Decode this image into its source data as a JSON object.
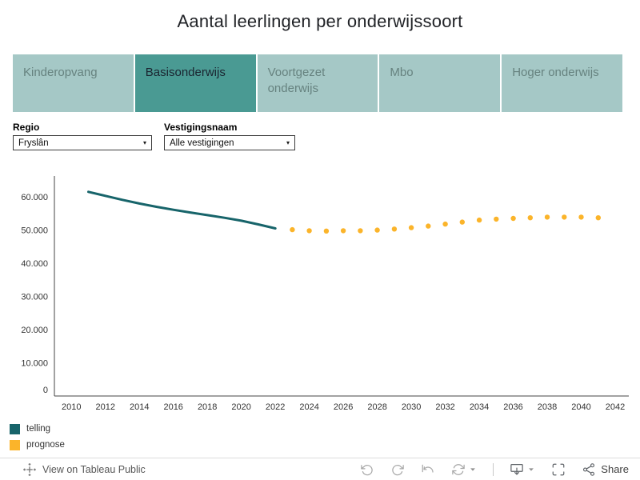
{
  "title": "Aantal leerlingen per onderwijssoort",
  "tabs": [
    {
      "label": "Kinderopvang",
      "selected": false
    },
    {
      "label": "Basisonderwijs",
      "selected": true
    },
    {
      "label": "Voortgezet onderwijs",
      "selected": false
    },
    {
      "label": "Mbo",
      "selected": false
    },
    {
      "label": "Hoger onderwijs",
      "selected": false
    }
  ],
  "filters": {
    "regio": {
      "label": "Regio",
      "value": "Fryslân"
    },
    "vestigingsnaam": {
      "label": "Vestigingsnaam",
      "value": "Alle vestigingen"
    }
  },
  "chart_data": {
    "type": "line",
    "title": "",
    "xlabel": "",
    "ylabel": "",
    "grid": false,
    "legend_position": "bottom-left",
    "xlim": [
      2009,
      2042.8
    ],
    "ylim": [
      0,
      65800
    ],
    "x_ticks": [
      2010,
      2012,
      2014,
      2016,
      2018,
      2020,
      2022,
      2024,
      2026,
      2028,
      2030,
      2032,
      2034,
      2036,
      2038,
      2040,
      2042
    ],
    "y_ticks": [
      {
        "value": 0,
        "label": "0"
      },
      {
        "value": 10000,
        "label": "10.000"
      },
      {
        "value": 20000,
        "label": "20.000"
      },
      {
        "value": 30000,
        "label": "30.000"
      },
      {
        "value": 40000,
        "label": "40.000"
      },
      {
        "value": 50000,
        "label": "50.000"
      },
      {
        "value": 60000,
        "label": "60.000"
      }
    ],
    "series": [
      {
        "name": "telling",
        "style": "line",
        "color": "#17646a",
        "x": [
          2011,
          2012,
          2013,
          2014,
          2015,
          2016,
          2017,
          2018,
          2019,
          2020,
          2021,
          2022
        ],
        "values": [
          61500,
          60300,
          59100,
          58000,
          57000,
          56100,
          55300,
          54500,
          53700,
          52800,
          51700,
          50500
        ]
      },
      {
        "name": "prognose",
        "style": "dots",
        "color": "#fbb42a",
        "x": [
          2023,
          2024,
          2025,
          2026,
          2027,
          2028,
          2029,
          2030,
          2031,
          2032,
          2033,
          2034,
          2035,
          2036,
          2037,
          2038,
          2039,
          2040,
          2041
        ],
        "values": [
          50100,
          49800,
          49700,
          49800,
          49800,
          50000,
          50300,
          50700,
          51200,
          51800,
          52400,
          53000,
          53300,
          53500,
          53700,
          53900,
          53900,
          53900,
          53700
        ]
      }
    ]
  },
  "legend": [
    {
      "label": "telling",
      "color": "#17646a"
    },
    {
      "label": "prognose",
      "color": "#fbb42a"
    }
  ],
  "colors": {
    "tab_selected_bg": "#4a9a93",
    "tab_bg": "#a5c8c6",
    "telling": "#17646a",
    "prognose": "#fbb42a"
  },
  "footer": {
    "view_text": "View on Tableau Public",
    "share_label": "Share",
    "icons": [
      "tableau-logo-icon",
      "undo-icon",
      "redo-icon",
      "replay-icon",
      "refresh-icon",
      "caret-down-icon",
      "download-icon",
      "fullscreen-icon",
      "share-icon"
    ]
  }
}
